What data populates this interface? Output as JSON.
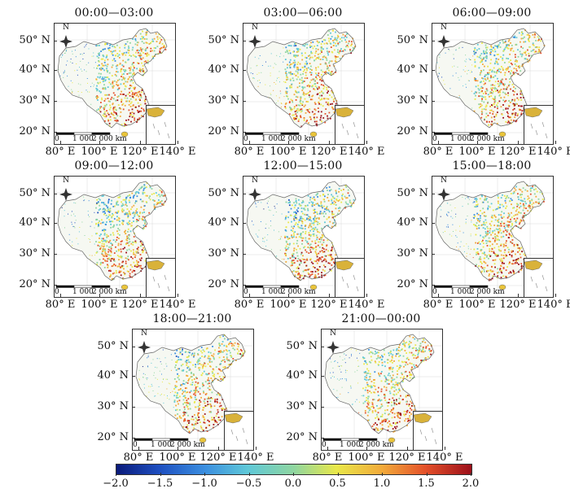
{
  "panels": [
    {
      "title": "00:00—03:00"
    },
    {
      "title": "03:00—06:00"
    },
    {
      "title": "06:00—09:00"
    },
    {
      "title": "09:00—12:00"
    },
    {
      "title": "12:00—15:00"
    },
    {
      "title": "15:00—18:00"
    },
    {
      "title": "18:00—21:00"
    },
    {
      "title": "21:00—00:00"
    }
  ],
  "axes": {
    "lat_labels": [
      "50° N",
      "40° N",
      "30° N",
      "20° N"
    ],
    "lon_labels": [
      "80° E",
      "100° E",
      "120° E",
      "140° E"
    ]
  },
  "map_furniture": {
    "north_label": "N",
    "scale_labels": [
      "0",
      "1 000",
      "2 000 km"
    ]
  },
  "colorbar": {
    "ticks": [
      "−2.0",
      "−1.5",
      "−1.0",
      "−0.5",
      "0.0",
      "0.5",
      "1.0",
      "1.5",
      "2.0"
    ],
    "range": [
      -2.0,
      2.0
    ],
    "colors": [
      "#0a1a7a",
      "#1e4fc0",
      "#3b8fe0",
      "#5fc8d8",
      "#8fd6a0",
      "#e9e84a",
      "#f2a93a",
      "#e4512a",
      "#9c0f1a"
    ]
  }
}
